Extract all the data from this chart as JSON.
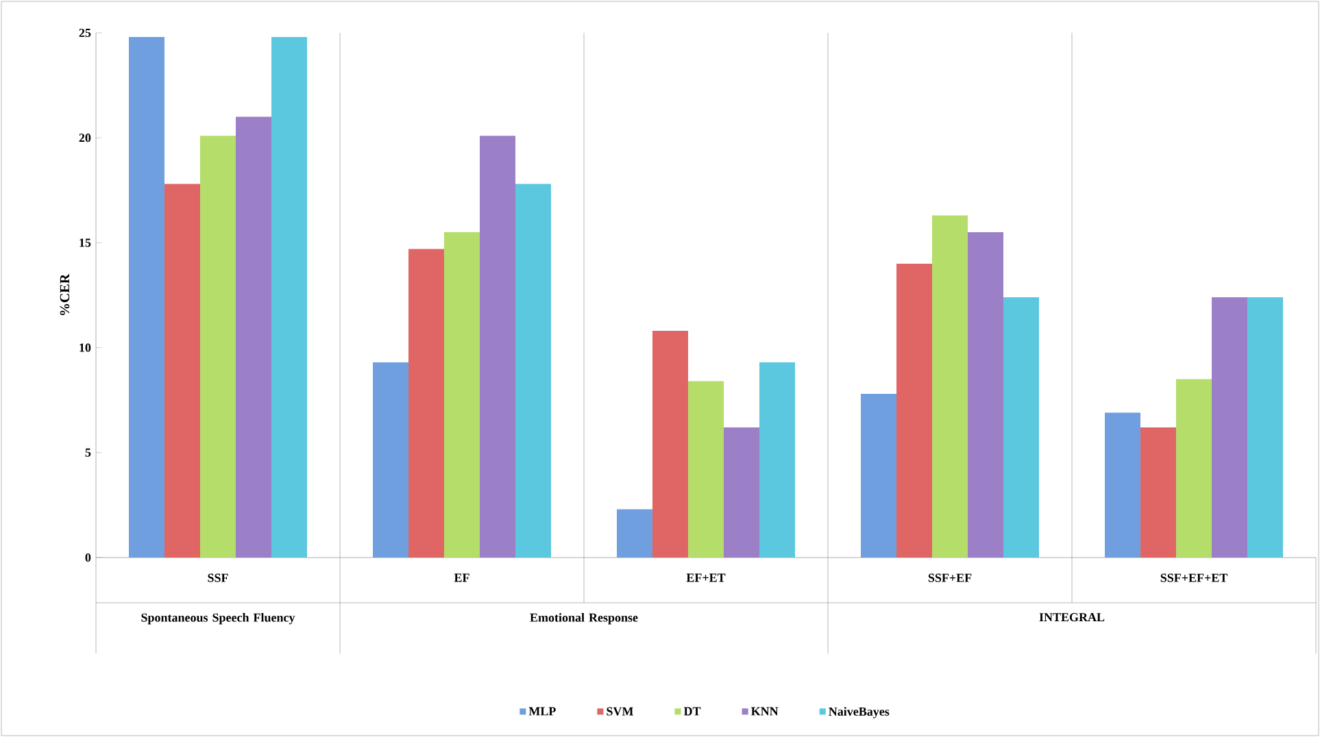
{
  "chart_data": {
    "type": "bar",
    "ylabel": "%CER",
    "categories": [
      "SSF",
      "EF",
      "EF+ET",
      "SSF+EF",
      "SSF+EF+ET"
    ],
    "series": [
      {
        "name": "MLP",
        "color": "#6f9fdf",
        "values": [
          24.8,
          9.3,
          2.3,
          7.8,
          6.9
        ]
      },
      {
        "name": "SVM",
        "color": "#e06666",
        "values": [
          17.8,
          14.7,
          10.8,
          14.0,
          6.2
        ]
      },
      {
        "name": "DT",
        "color": "#b5dd6a",
        "values": [
          20.1,
          15.5,
          8.4,
          16.3,
          8.5
        ]
      },
      {
        "name": "KNN",
        "color": "#9b7fc7",
        "values": [
          21.0,
          20.1,
          6.2,
          15.5,
          12.4
        ]
      },
      {
        "name": "NaiveBayes",
        "color": "#5cc8e0",
        "values": [
          24.8,
          17.8,
          9.3,
          12.4,
          12.4
        ]
      }
    ],
    "annotations": [
      "Spontaneous Speech Fluency",
      "Emotional Response",
      "INTEGRAL"
    ],
    "ylim": [
      0,
      25
    ],
    "yticks": [
      0,
      5,
      10,
      15,
      20,
      25
    ],
    "grid": "x",
    "legend": "bottom"
  }
}
